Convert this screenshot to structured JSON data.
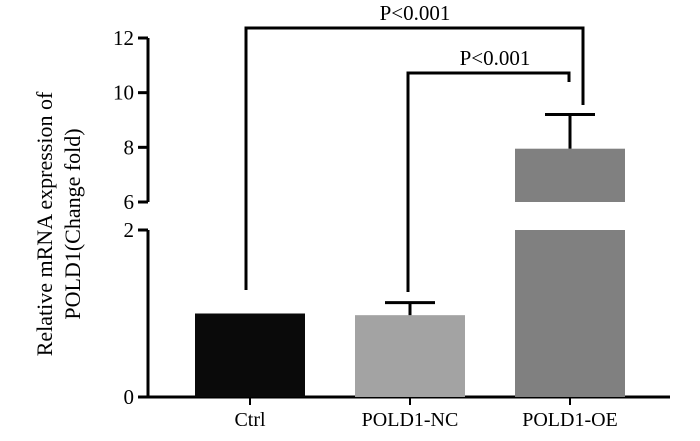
{
  "chart_data": {
    "type": "bar",
    "title": "",
    "xlabel": "",
    "ylabel": "Relative mRNA expression of POLD1(Change fold)",
    "ylabel_lines": [
      "Relative mRNA expression of",
      "POLD1(Change fold)"
    ],
    "categories": [
      "Ctrl",
      "POLD1-NC",
      "POLD1-OE"
    ],
    "values": [
      1.0,
      0.98,
      7.95
    ],
    "error_upper": [
      0,
      1.13,
      9.2
    ],
    "colors": [
      "#0a0a0a",
      "#a3a3a3",
      "#808080"
    ],
    "axis_break": [
      2,
      6
    ],
    "ylim": [
      0,
      12
    ],
    "yticks_lower": [
      "0",
      "2"
    ],
    "yticks_upper": [
      "6",
      "8",
      "10",
      "12"
    ],
    "annotations": [
      {
        "text": "P<0.001",
        "italic_part": "P",
        "rest": "<0.001",
        "from": "Ctrl",
        "to": "POLD1-OE"
      },
      {
        "text": "P<0.001",
        "italic_part": "P",
        "rest": "<0.001",
        "from": "POLD1-NC",
        "to": "POLD1-OE"
      }
    ]
  }
}
